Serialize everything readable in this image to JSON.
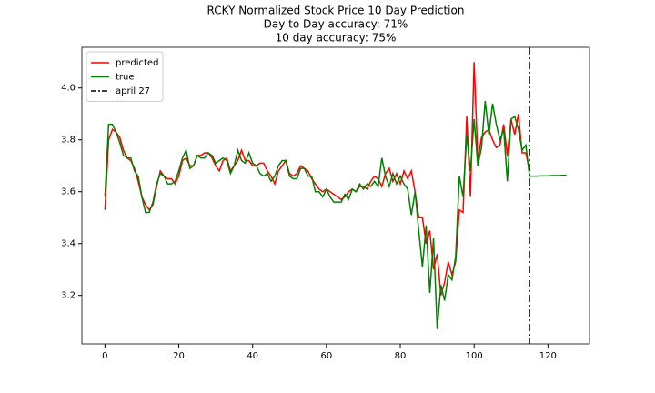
{
  "chart_data": {
    "type": "line",
    "title": "RCKY Normalized Stock Price 10 Day Prediction",
    "subtitles": [
      "Day to Day accuracy: 71%",
      "10 day accuracy: 75%"
    ],
    "x": [
      0,
      1,
      2,
      3,
      4,
      5,
      6,
      7,
      8,
      9,
      10,
      11,
      12,
      13,
      14,
      15,
      16,
      17,
      18,
      19,
      20,
      21,
      22,
      23,
      24,
      25,
      26,
      27,
      28,
      29,
      30,
      31,
      32,
      33,
      34,
      35,
      36,
      37,
      38,
      39,
      40,
      41,
      42,
      43,
      44,
      45,
      46,
      47,
      48,
      49,
      50,
      51,
      52,
      53,
      54,
      55,
      56,
      57,
      58,
      59,
      60,
      61,
      62,
      63,
      64,
      65,
      66,
      67,
      68,
      69,
      70,
      71,
      72,
      73,
      74,
      75,
      76,
      77,
      78,
      79,
      80,
      81,
      82,
      83,
      84,
      85,
      86,
      87,
      88,
      89,
      90,
      91,
      92,
      93,
      94,
      95,
      96,
      97,
      98,
      99,
      100,
      101,
      102,
      103,
      104,
      105,
      106,
      107,
      108,
      109,
      110,
      111,
      112,
      113,
      114,
      115,
      116,
      117,
      118,
      119,
      120,
      121,
      122,
      123,
      124,
      125
    ],
    "series": [
      {
        "name": "predicted",
        "color": "#ff0000",
        "values": [
          3.53,
          3.8,
          3.84,
          3.83,
          3.81,
          3.76,
          3.73,
          3.72,
          3.69,
          3.64,
          3.58,
          3.55,
          3.53,
          3.55,
          3.62,
          3.68,
          3.66,
          3.65,
          3.65,
          3.63,
          3.66,
          3.72,
          3.73,
          3.7,
          3.7,
          3.74,
          3.74,
          3.75,
          3.75,
          3.73,
          3.7,
          3.68,
          3.72,
          3.73,
          3.68,
          3.7,
          3.72,
          3.76,
          3.72,
          3.72,
          3.7,
          3.7,
          3.71,
          3.71,
          3.68,
          3.66,
          3.63,
          3.68,
          3.7,
          3.72,
          3.67,
          3.66,
          3.67,
          3.7,
          3.69,
          3.68,
          3.65,
          3.63,
          3.61,
          3.6,
          3.61,
          3.6,
          3.59,
          3.58,
          3.57,
          3.58,
          3.6,
          3.61,
          3.6,
          3.62,
          3.62,
          3.61,
          3.64,
          3.66,
          3.65,
          3.62,
          3.67,
          3.69,
          3.64,
          3.67,
          3.63,
          3.68,
          3.65,
          3.68,
          3.6,
          3.5,
          3.5,
          3.4,
          3.45,
          3.3,
          3.36,
          3.2,
          3.25,
          3.33,
          3.28,
          3.33,
          3.53,
          3.52,
          3.89,
          3.58,
          4.1,
          3.72,
          3.81,
          3.83,
          3.84,
          3.8,
          3.77,
          3.78,
          3.86,
          3.74,
          3.88,
          3.82,
          3.9,
          3.75,
          3.75,
          3.68,
          null,
          null,
          null,
          null,
          null,
          null,
          null,
          null,
          null,
          null
        ]
      },
      {
        "name": "true",
        "color": "#008000",
        "values": [
          3.58,
          3.86,
          3.86,
          3.83,
          3.79,
          3.74,
          3.73,
          3.73,
          3.68,
          3.66,
          3.58,
          3.52,
          3.52,
          3.56,
          3.63,
          3.67,
          3.66,
          3.63,
          3.63,
          3.64,
          3.68,
          3.73,
          3.76,
          3.69,
          3.7,
          3.74,
          3.73,
          3.73,
          3.75,
          3.74,
          3.71,
          3.72,
          3.73,
          3.72,
          3.67,
          3.7,
          3.76,
          3.72,
          3.71,
          3.75,
          3.71,
          3.7,
          3.67,
          3.66,
          3.67,
          3.64,
          3.66,
          3.7,
          3.72,
          3.72,
          3.66,
          3.65,
          3.65,
          3.69,
          3.69,
          3.66,
          3.66,
          3.6,
          3.6,
          3.58,
          3.61,
          3.58,
          3.56,
          3.56,
          3.56,
          3.59,
          3.57,
          3.61,
          3.6,
          3.63,
          3.61,
          3.63,
          3.62,
          3.64,
          3.62,
          3.73,
          3.66,
          3.62,
          3.67,
          3.63,
          3.66,
          3.63,
          3.61,
          3.51,
          3.6,
          3.45,
          3.31,
          3.47,
          3.21,
          3.42,
          3.07,
          3.24,
          3.18,
          3.28,
          3.26,
          3.35,
          3.66,
          3.58,
          3.82,
          3.68,
          3.88,
          3.7,
          3.77,
          3.95,
          3.82,
          3.94,
          3.86,
          3.8,
          3.84,
          3.64,
          3.88,
          3.89,
          3.84,
          3.76,
          3.78,
          3.66,
          3.66,
          3.66,
          3.661,
          3.661,
          3.661,
          3.662,
          3.662,
          3.662,
          3.663,
          3.663
        ]
      }
    ],
    "vline": {
      "name": "april 27",
      "x": 115,
      "color": "#000000"
    },
    "xlim": [
      -6.25,
      131.25
    ],
    "xticks": [
      0,
      20,
      40,
      60,
      80,
      100,
      120
    ],
    "ylim": [
      3.013,
      4.157
    ],
    "yticks": [
      3.2,
      3.4,
      3.6,
      3.8,
      {
        "value": 4,
        "label": "4.0"
      }
    ],
    "grid": false,
    "legend": "upper left"
  }
}
